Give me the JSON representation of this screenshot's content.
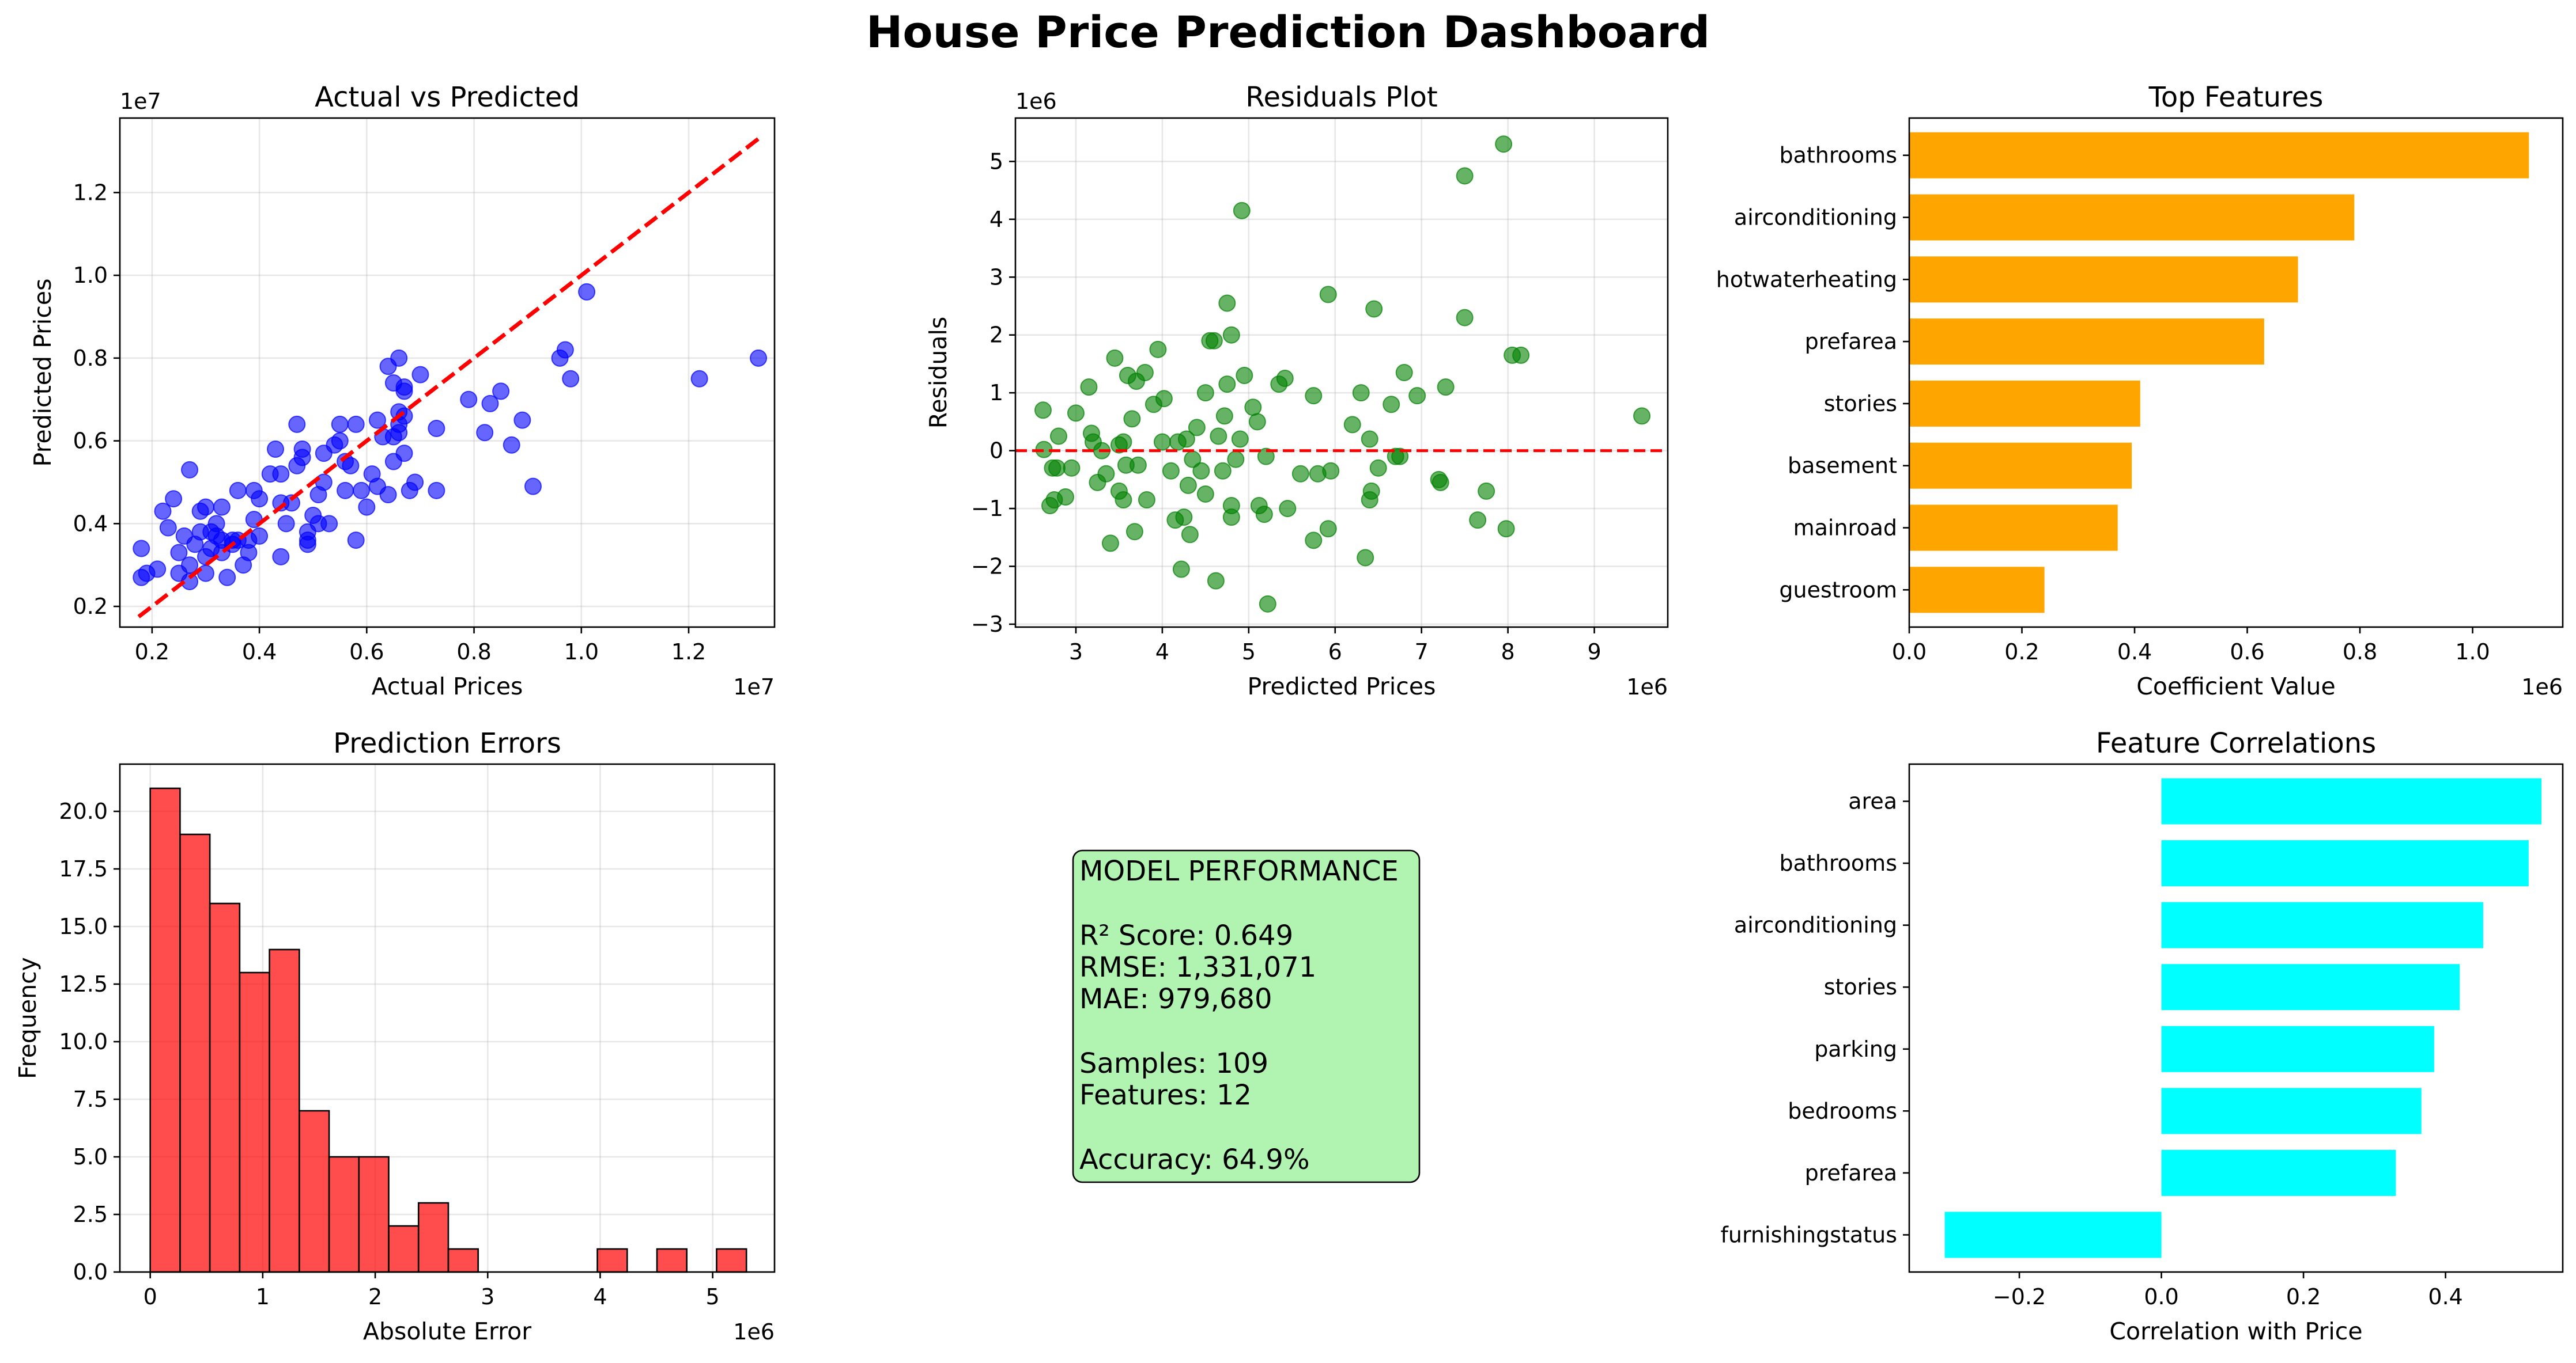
{
  "page_title": "House Price Prediction Dashboard",
  "colors": {
    "scatter": "#0000ff",
    "residuals": "#008000",
    "ideal_line": "#ff0000",
    "top_features_bar": "#ffa500",
    "errors_hist": "#ff0000",
    "correlation_bar": "#00ffff",
    "metrics_box": "#90ee90",
    "grid": "#b0b0b0"
  },
  "metrics_box": {
    "lines": [
      "MODEL PERFORMANCE",
      "",
      "R² Score: 0.649",
      "RMSE: 1,331,071",
      "MAE: 979,680",
      "",
      "Samples: 109",
      "Features: 12",
      "",
      "Accuracy: 64.9%"
    ]
  },
  "chart_data": [
    {
      "type": "scatter",
      "title": "Actual vs Predicted",
      "xlabel": "Actual Prices",
      "ylabel": "Predicted Prices",
      "x_multiplier": "1e7",
      "y_multiplier": "1e7",
      "xlim": [
        0.14,
        1.36
      ],
      "ylim": [
        0.15,
        1.38
      ],
      "xticks": [
        0.2,
        0.4,
        0.6,
        0.8,
        1.0,
        1.2
      ],
      "yticks": [
        0.2,
        0.4,
        0.6,
        0.8,
        1.0,
        1.2
      ],
      "xtick_labels": [
        "0.2",
        "0.4",
        "0.6",
        "0.8",
        "1.0",
        "1.2"
      ],
      "ytick_labels": [
        "0.2",
        "0.4",
        "0.6",
        "0.8",
        "1.0",
        "1.2"
      ],
      "grid": true,
      "reference_line": {
        "from": [
          0.175,
          0.175
        ],
        "to": [
          1.33,
          1.33
        ],
        "style": "dashed"
      },
      "points": [
        [
          0.18,
          0.27
        ],
        [
          0.19,
          0.28
        ],
        [
          0.18,
          0.34
        ],
        [
          0.21,
          0.29
        ],
        [
          0.22,
          0.43
        ],
        [
          0.23,
          0.39
        ],
        [
          0.24,
          0.46
        ],
        [
          0.25,
          0.28
        ],
        [
          0.25,
          0.33
        ],
        [
          0.26,
          0.37
        ],
        [
          0.27,
          0.26
        ],
        [
          0.27,
          0.3
        ],
        [
          0.27,
          0.53
        ],
        [
          0.28,
          0.35
        ],
        [
          0.29,
          0.38
        ],
        [
          0.29,
          0.43
        ],
        [
          0.3,
          0.28
        ],
        [
          0.3,
          0.32
        ],
        [
          0.3,
          0.44
        ],
        [
          0.31,
          0.34
        ],
        [
          0.31,
          0.38
        ],
        [
          0.32,
          0.37
        ],
        [
          0.32,
          0.4
        ],
        [
          0.33,
          0.33
        ],
        [
          0.33,
          0.36
        ],
        [
          0.33,
          0.44
        ],
        [
          0.34,
          0.27
        ],
        [
          0.35,
          0.35
        ],
        [
          0.35,
          0.36
        ],
        [
          0.36,
          0.36
        ],
        [
          0.36,
          0.48
        ],
        [
          0.37,
          0.3
        ],
        [
          0.38,
          0.33
        ],
        [
          0.38,
          0.36
        ],
        [
          0.39,
          0.41
        ],
        [
          0.39,
          0.48
        ],
        [
          0.4,
          0.37
        ],
        [
          0.4,
          0.46
        ],
        [
          0.42,
          0.52
        ],
        [
          0.43,
          0.58
        ],
        [
          0.44,
          0.32
        ],
        [
          0.44,
          0.45
        ],
        [
          0.44,
          0.52
        ],
        [
          0.45,
          0.4
        ],
        [
          0.46,
          0.45
        ],
        [
          0.47,
          0.54
        ],
        [
          0.47,
          0.64
        ],
        [
          0.48,
          0.56
        ],
        [
          0.48,
          0.58
        ],
        [
          0.49,
          0.35
        ],
        [
          0.49,
          0.38
        ],
        [
          0.49,
          0.36
        ],
        [
          0.5,
          0.42
        ],
        [
          0.51,
          0.47
        ],
        [
          0.51,
          0.4
        ],
        [
          0.52,
          0.57
        ],
        [
          0.52,
          0.5
        ],
        [
          0.53,
          0.4
        ],
        [
          0.54,
          0.59
        ],
        [
          0.55,
          0.64
        ],
        [
          0.55,
          0.6
        ],
        [
          0.56,
          0.48
        ],
        [
          0.56,
          0.55
        ],
        [
          0.57,
          0.54
        ],
        [
          0.58,
          0.36
        ],
        [
          0.58,
          0.64
        ],
        [
          0.59,
          0.48
        ],
        [
          0.6,
          0.44
        ],
        [
          0.61,
          0.52
        ],
        [
          0.62,
          0.65
        ],
        [
          0.62,
          0.49
        ],
        [
          0.63,
          0.61
        ],
        [
          0.64,
          0.78
        ],
        [
          0.64,
          0.47
        ],
        [
          0.65,
          0.55
        ],
        [
          0.65,
          0.61
        ],
        [
          0.65,
          0.74
        ],
        [
          0.66,
          0.67
        ],
        [
          0.66,
          0.62
        ],
        [
          0.66,
          0.64
        ],
        [
          0.66,
          0.8
        ],
        [
          0.67,
          0.72
        ],
        [
          0.67,
          0.66
        ],
        [
          0.67,
          0.73
        ],
        [
          0.67,
          0.57
        ],
        [
          0.68,
          0.48
        ],
        [
          0.69,
          0.5
        ],
        [
          0.7,
          0.76
        ],
        [
          0.73,
          0.63
        ],
        [
          0.73,
          0.48
        ],
        [
          0.79,
          0.7
        ],
        [
          0.82,
          0.62
        ],
        [
          0.83,
          0.69
        ],
        [
          0.85,
          0.72
        ],
        [
          0.87,
          0.59
        ],
        [
          0.89,
          0.65
        ],
        [
          0.91,
          0.49
        ],
        [
          0.96,
          0.8
        ],
        [
          0.97,
          0.82
        ],
        [
          0.98,
          0.75
        ],
        [
          1.01,
          0.96
        ],
        [
          1.22,
          0.75
        ],
        [
          1.33,
          0.8
        ]
      ]
    },
    {
      "type": "scatter",
      "title": "Residuals Plot",
      "xlabel": "Predicted Prices",
      "ylabel": "Residuals",
      "x_multiplier": "1e6",
      "y_multiplier": "1e6",
      "xlim": [
        2.3,
        9.85
      ],
      "ylim": [
        -3.05,
        5.75
      ],
      "xticks": [
        3,
        4,
        5,
        6,
        7,
        8,
        9
      ],
      "yticks": [
        -3,
        -2,
        -1,
        0,
        1,
        2,
        3,
        4,
        5
      ],
      "xtick_labels": [
        "3",
        "4",
        "5",
        "6",
        "7",
        "8",
        "9"
      ],
      "ytick_labels": [
        "−3",
        "−2",
        "−1",
        "0",
        "1",
        "2",
        "3",
        "4",
        "5"
      ],
      "grid": true,
      "reference_line": {
        "y": 0,
        "style": "dashed"
      },
      "points": [
        [
          2.62,
          0.7
        ],
        [
          2.63,
          0.02
        ],
        [
          2.7,
          -0.95
        ],
        [
          2.73,
          -0.3
        ],
        [
          2.75,
          -0.85
        ],
        [
          2.78,
          -0.3
        ],
        [
          2.8,
          0.25
        ],
        [
          2.88,
          -0.8
        ],
        [
          2.95,
          -0.3
        ],
        [
          3.0,
          0.65
        ],
        [
          3.15,
          1.1
        ],
        [
          3.18,
          0.3
        ],
        [
          3.2,
          0.15
        ],
        [
          3.25,
          -0.55
        ],
        [
          3.3,
          0.0
        ],
        [
          3.35,
          -0.4
        ],
        [
          3.4,
          -1.6
        ],
        [
          3.45,
          1.6
        ],
        [
          3.5,
          0.1
        ],
        [
          3.5,
          -0.7
        ],
        [
          3.55,
          0.15
        ],
        [
          3.55,
          -0.85
        ],
        [
          3.58,
          -0.25
        ],
        [
          3.6,
          1.3
        ],
        [
          3.65,
          0.55
        ],
        [
          3.68,
          -1.4
        ],
        [
          3.7,
          1.2
        ],
        [
          3.72,
          -0.25
        ],
        [
          3.8,
          1.35
        ],
        [
          3.82,
          -0.85
        ],
        [
          3.9,
          0.8
        ],
        [
          3.95,
          1.75
        ],
        [
          4.0,
          0.15
        ],
        [
          4.02,
          0.9
        ],
        [
          4.1,
          -0.35
        ],
        [
          4.15,
          -1.2
        ],
        [
          4.18,
          0.15
        ],
        [
          4.22,
          -2.05
        ],
        [
          4.25,
          -1.15
        ],
        [
          4.28,
          0.2
        ],
        [
          4.3,
          -0.6
        ],
        [
          4.32,
          -1.45
        ],
        [
          4.35,
          -0.15
        ],
        [
          4.4,
          0.4
        ],
        [
          4.45,
          -0.35
        ],
        [
          4.5,
          1.0
        ],
        [
          4.5,
          -0.75
        ],
        [
          4.55,
          1.9
        ],
        [
          4.6,
          1.9
        ],
        [
          4.62,
          -2.25
        ],
        [
          4.65,
          0.25
        ],
        [
          4.7,
          -0.35
        ],
        [
          4.72,
          0.6
        ],
        [
          4.75,
          1.15
        ],
        [
          4.8,
          2.0
        ],
        [
          4.8,
          -0.95
        ],
        [
          4.8,
          -1.15
        ],
        [
          4.75,
          2.55
        ],
        [
          4.85,
          -0.15
        ],
        [
          4.9,
          0.2
        ],
        [
          4.92,
          4.15
        ],
        [
          4.95,
          1.3
        ],
        [
          5.05,
          0.75
        ],
        [
          5.1,
          0.5
        ],
        [
          5.12,
          -0.95
        ],
        [
          5.18,
          -1.1
        ],
        [
          5.2,
          -0.1
        ],
        [
          5.22,
          -2.65
        ],
        [
          5.35,
          1.15
        ],
        [
          5.42,
          1.25
        ],
        [
          5.45,
          -1.0
        ],
        [
          5.6,
          -0.4
        ],
        [
          5.75,
          0.95
        ],
        [
          5.75,
          -1.55
        ],
        [
          5.8,
          -0.4
        ],
        [
          5.92,
          -1.35
        ],
        [
          5.92,
          2.7
        ],
        [
          5.95,
          -0.35
        ],
        [
          6.2,
          0.45
        ],
        [
          6.3,
          1.0
        ],
        [
          6.35,
          -1.85
        ],
        [
          6.4,
          -0.85
        ],
        [
          6.4,
          0.2
        ],
        [
          6.42,
          -0.7
        ],
        [
          6.45,
          2.45
        ],
        [
          6.5,
          -0.3
        ],
        [
          6.65,
          0.8
        ],
        [
          6.7,
          -0.1
        ],
        [
          6.75,
          -0.1
        ],
        [
          6.8,
          1.35
        ],
        [
          6.95,
          0.95
        ],
        [
          7.2,
          -0.5
        ],
        [
          7.22,
          -0.55
        ],
        [
          7.28,
          1.1
        ],
        [
          7.5,
          2.3
        ],
        [
          7.5,
          4.75
        ],
        [
          7.65,
          -1.2
        ],
        [
          7.75,
          -0.7
        ],
        [
          7.95,
          5.3
        ],
        [
          7.98,
          -1.35
        ],
        [
          8.05,
          1.65
        ],
        [
          8.15,
          1.65
        ],
        [
          9.55,
          0.6
        ]
      ]
    },
    {
      "type": "bar",
      "orientation": "horizontal",
      "title": "Top Features",
      "xlabel": "Coefficient Value",
      "ylabel": "",
      "x_multiplier": "1e6",
      "xlim": [
        0,
        1.16
      ],
      "xticks": [
        0.0,
        0.2,
        0.4,
        0.6,
        0.8,
        1.0
      ],
      "xtick_labels": [
        "0.0",
        "0.2",
        "0.4",
        "0.6",
        "0.8",
        "1.0"
      ],
      "categories": [
        "bathrooms",
        "airconditioning",
        "hotwaterheating",
        "prefarea",
        "stories",
        "basement",
        "mainroad",
        "guestroom"
      ],
      "values": [
        1.1,
        0.79,
        0.69,
        0.63,
        0.41,
        0.395,
        0.37,
        0.24
      ]
    },
    {
      "type": "bar",
      "subtype": "histogram",
      "title": "Prediction Errors",
      "xlabel": "Absolute Error",
      "ylabel": "Frequency",
      "x_multiplier": "1e6",
      "xlim": [
        -0.27,
        5.55
      ],
      "ylim": [
        0,
        22.05
      ],
      "xticks": [
        0,
        1,
        2,
        3,
        4,
        5
      ],
      "yticks": [
        0.0,
        2.5,
        5.0,
        7.5,
        10.0,
        12.5,
        15.0,
        17.5,
        20.0
      ],
      "xtick_labels": [
        "0",
        "1",
        "2",
        "3",
        "4",
        "5"
      ],
      "ytick_labels": [
        "0.0",
        "2.5",
        "5.0",
        "7.5",
        "10.0",
        "12.5",
        "15.0",
        "17.5",
        "20.0"
      ],
      "grid": true,
      "bin_width": 0.265,
      "bin_start": 0.0,
      "values": [
        21,
        19,
        16,
        13,
        14,
        7,
        5,
        5,
        2,
        3,
        1,
        0,
        0,
        0,
        0,
        1,
        0,
        1,
        0,
        1
      ]
    },
    {
      "type": "bar",
      "orientation": "horizontal",
      "title": "Feature Correlations",
      "xlabel": "Correlation with Price",
      "ylabel": "",
      "xlim": [
        -0.355,
        0.565
      ],
      "xticks": [
        -0.2,
        0.0,
        0.2,
        0.4
      ],
      "xtick_labels": [
        "−0.2",
        "0.0",
        "0.2",
        "0.4"
      ],
      "categories": [
        "area",
        "bathrooms",
        "airconditioning",
        "stories",
        "parking",
        "bedrooms",
        "prefarea",
        "furnishingstatus"
      ],
      "values": [
        0.535,
        0.517,
        0.453,
        0.42,
        0.384,
        0.366,
        0.33,
        -0.305
      ]
    }
  ]
}
